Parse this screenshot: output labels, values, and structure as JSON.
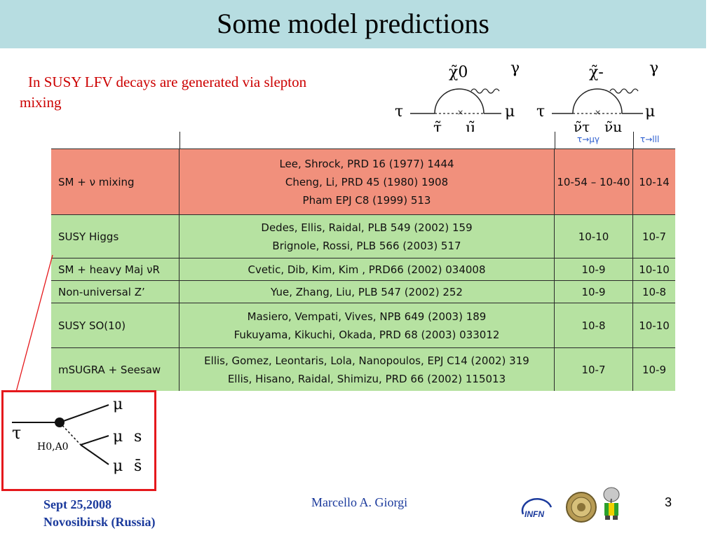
{
  "slide": {
    "title": "Some model predictions",
    "intro": "In SUSY LFV decays are generated  via slepton mixing"
  },
  "table": {
    "header_partial": [
      "τ→μγ",
      "τ→lll"
    ],
    "rows": [
      {
        "model": "SM + ν mixing",
        "refs": [
          "Lee, Shrock, PRD 16 (1977) 1444",
          "Cheng, Li, PRD 45 (1980) 1908",
          "Pham EPJ C8 (1999) 513"
        ],
        "mugamma": "10-54 – 10-40",
        "lll": "10-14",
        "color": "#f1907c"
      },
      {
        "model": "SUSY Higgs",
        "refs": [
          "Dedes, Ellis, Raidal, PLB 549 (2002) 159",
          "Brignole, Rossi, PLB 566 (2003) 517"
        ],
        "mugamma": "10-10",
        "lll": "10-7",
        "color": "#b6e2a1"
      },
      {
        "model": "SM + heavy Maj νR",
        "refs": [
          "Cvetic, Dib, Kim, Kim , PRD66 (2002) 034008"
        ],
        "mugamma": "10-9",
        "lll": "10-10",
        "color": "#b6e2a1"
      },
      {
        "model": "Non-universal Z’",
        "refs": [
          "Yue, Zhang, Liu, PLB 547 (2002) 252"
        ],
        "mugamma": "10-9",
        "lll": "10-8",
        "color": "#b6e2a1"
      },
      {
        "model": "SUSY SO(10)",
        "refs": [
          "Masiero, Vempati, Vives, NPB 649 (2003) 189",
          "Fukuyama, Kikuchi, Okada, PRD 68 (2003) 033012"
        ],
        "mugamma": "10-8",
        "lll": "10-10",
        "color": "#b6e2a1"
      },
      {
        "model": "mSUGRA + Seesaw",
        "refs": [
          "Ellis, Gomez, Leontaris, Lola, Nanopoulos, EPJ C14 (2002) 319",
          "Ellis, Hisano, Raidal, Shimizu, PRD 66 (2002) 115013"
        ],
        "mugamma": "10-7",
        "lll": "10-9",
        "color": "#b6e2a1"
      }
    ]
  },
  "diagrams": {
    "neutralino": {
      "in": "τ",
      "out": "μ",
      "boson": "χ̃0",
      "photon": "γ",
      "sleptons": [
        "τ̃",
        "μ̃"
      ]
    },
    "chargino": {
      "in": "τ",
      "out": "μ",
      "boson": "χ̃-",
      "photon": "γ",
      "sleptons": [
        "ν̃τ",
        "ν̃μ"
      ]
    },
    "higgs": {
      "in": "τ",
      "mediator": "H0,A0",
      "out": [
        "μ",
        "μ",
        "μ"
      ],
      "quarks": [
        "s",
        "s̄"
      ]
    }
  },
  "footer": {
    "date": "Sept 25,2008",
    "place": "Novosibirsk (Russia)",
    "author": "Marcello A. Giorgi",
    "page": "3",
    "logo_infn": "INFN"
  },
  "colors": {
    "title_bg": "#b7dde1",
    "red_row": "#f1907c",
    "green_row": "#b6e2a1",
    "red_text": "#cc0000",
    "footer_text": "#1b3a9c"
  }
}
